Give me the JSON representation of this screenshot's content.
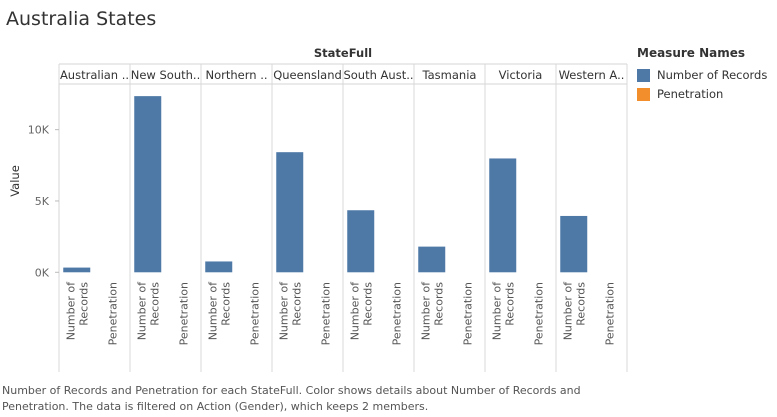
{
  "page": {
    "title": "Australia States"
  },
  "chart_data": {
    "type": "bar",
    "column_header": "StateFull",
    "categories": [
      "Australian ..",
      "New South..",
      "Northern ..",
      "Queensland",
      "South Aust..",
      "Tasmania",
      "Victoria",
      "Western A.."
    ],
    "measures": [
      "Number of Records",
      "Penetration"
    ],
    "measure_tick_labels": [
      [
        "Number of",
        "Records"
      ],
      [
        "Penetration"
      ]
    ],
    "series": [
      {
        "name": "Number of Records",
        "color": "#4e79a7",
        "values": [
          330,
          12350,
          760,
          8420,
          4350,
          1800,
          7980,
          3950
        ]
      },
      {
        "name": "Penetration",
        "color": "#f28e2b",
        "values": [
          0,
          0,
          0,
          0,
          0,
          0,
          0,
          0
        ]
      }
    ],
    "ylabel": "Value",
    "yticks": [
      {
        "value": 0,
        "label": "0K"
      },
      {
        "value": 5000,
        "label": "5K"
      },
      {
        "value": 10000,
        "label": "10K"
      }
    ],
    "ylim": [
      -400,
      13200
    ],
    "grid": false,
    "legend": {
      "title": "Measure Names",
      "placement": "right",
      "items": [
        {
          "label": "Number of Records",
          "color": "#4e79a7"
        },
        {
          "label": "Penetration",
          "color": "#f28e2b"
        }
      ]
    }
  },
  "caption": "Number of Records and Penetration for each StateFull.  Color shows details about Number of Records and Penetration. The data is filtered on Action (Gender), which keeps 2 members."
}
